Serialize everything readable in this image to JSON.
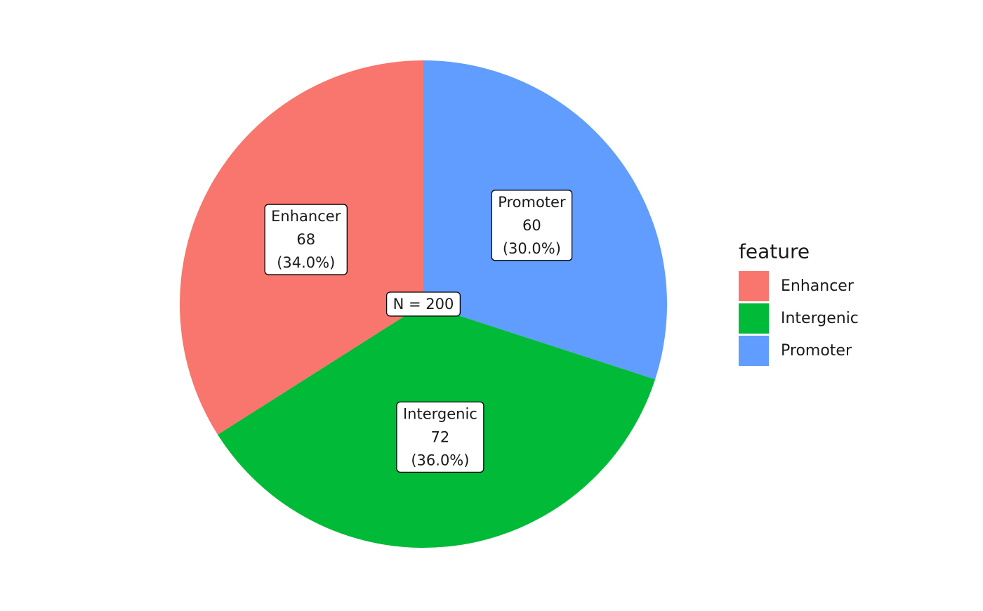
{
  "chart_data": {
    "type": "pie",
    "start_angle": "12 o'clock",
    "direction": "clockwise",
    "slices": [
      {
        "category": "Promoter",
        "value": 60,
        "percent_label": "(30.0%)",
        "color": "#619CFF"
      },
      {
        "category": "Intergenic",
        "value": 72,
        "percent_label": "(36.0%)",
        "color": "#00BA38"
      },
      {
        "category": "Enhancer",
        "value": 68,
        "percent_label": "(34.0%)",
        "color": "#F8766D"
      }
    ],
    "total_label": "N = 200",
    "legend": {
      "title": "feature",
      "placement": "right",
      "items": [
        {
          "label": "Enhancer",
          "color": "#F8766D"
        },
        {
          "label": "Intergenic",
          "color": "#00BA38"
        },
        {
          "label": "Promoter",
          "color": "#619CFF"
        }
      ]
    }
  }
}
